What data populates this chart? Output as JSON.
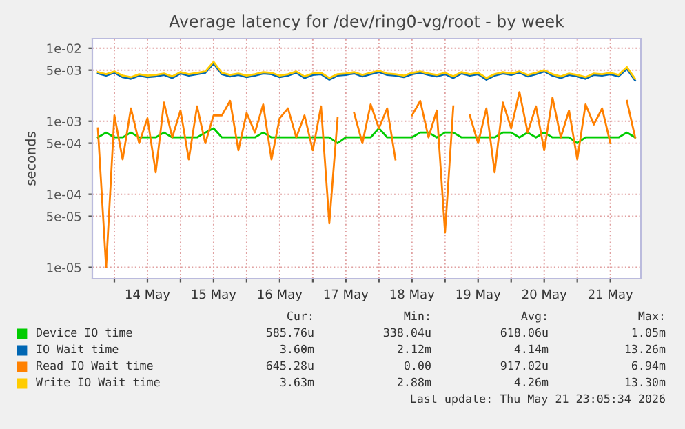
{
  "chart_data": {
    "type": "line",
    "title": "Average latency for /dev/ring0-vg/root - by week",
    "ylabel": "seconds",
    "log": "y",
    "grid": true,
    "legend": "bottom",
    "line_style": "solid",
    "marker": "none",
    "x": [
      "2026-05-13T18:00",
      "2026-05-13T21:00",
      "2026-05-14T00:00",
      "2026-05-14T03:00",
      "2026-05-14T06:00",
      "2026-05-14T09:00",
      "2026-05-14T12:00",
      "2026-05-14T15:00",
      "2026-05-14T18:00",
      "2026-05-14T21:00",
      "2026-05-15T00:00",
      "2026-05-15T03:00",
      "2026-05-15T06:00",
      "2026-05-15T09:00",
      "2026-05-15T12:00",
      "2026-05-15T15:00",
      "2026-05-15T18:00",
      "2026-05-15T21:00",
      "2026-05-16T00:00",
      "2026-05-16T03:00",
      "2026-05-16T06:00",
      "2026-05-16T09:00",
      "2026-05-16T12:00",
      "2026-05-16T15:00",
      "2026-05-16T18:00",
      "2026-05-16T21:00",
      "2026-05-17T00:00",
      "2026-05-17T03:00",
      "2026-05-17T06:00",
      "2026-05-17T09:00",
      "2026-05-17T12:00",
      "2026-05-17T15:00",
      "2026-05-17T18:00",
      "2026-05-17T21:00",
      "2026-05-18T00:00",
      "2026-05-18T03:00",
      "2026-05-18T06:00",
      "2026-05-18T09:00",
      "2026-05-18T12:00",
      "2026-05-18T15:00",
      "2026-05-18T18:00",
      "2026-05-18T21:00",
      "2026-05-19T00:00",
      "2026-05-19T03:00",
      "2026-05-19T06:00",
      "2026-05-19T09:00",
      "2026-05-19T12:00",
      "2026-05-19T15:00",
      "2026-05-19T18:00",
      "2026-05-19T21:00",
      "2026-05-20T00:00",
      "2026-05-20T03:00",
      "2026-05-20T06:00",
      "2026-05-20T09:00",
      "2026-05-20T12:00",
      "2026-05-20T15:00",
      "2026-05-20T18:00",
      "2026-05-20T21:00",
      "2026-05-21T00:00",
      "2026-05-21T03:00",
      "2026-05-21T06:00",
      "2026-05-21T09:00",
      "2026-05-21T12:00",
      "2026-05-21T15:00",
      "2026-05-21T18:00",
      "2026-05-21T21:00"
    ],
    "series": [
      {
        "name": "Device IO time",
        "color": "#00cc00",
        "values": [
          0.0006,
          0.0007,
          0.0006,
          0.0006,
          0.0007,
          0.0006,
          0.0006,
          0.0006,
          0.0007,
          0.0006,
          0.0006,
          0.0006,
          0.0006,
          0.0007,
          0.0008,
          0.0006,
          0.0006,
          0.0006,
          0.0006,
          0.0006,
          0.0007,
          0.0006,
          0.0006,
          0.0006,
          0.0006,
          0.0006,
          0.0006,
          0.0006,
          0.0006,
          0.0005,
          0.0006,
          0.0006,
          0.0006,
          0.0006,
          0.0008,
          0.0006,
          0.0006,
          0.0006,
          0.0006,
          0.0007,
          0.0007,
          0.0006,
          0.0007,
          0.0007,
          0.0006,
          0.0006,
          0.0006,
          0.0006,
          0.0006,
          0.0007,
          0.0007,
          0.0006,
          0.0007,
          0.0006,
          0.0007,
          0.0006,
          0.0006,
          0.0006,
          0.0005,
          0.0006,
          0.0006,
          0.0006,
          0.0006,
          0.0006,
          0.0007,
          0.0006
        ]
      },
      {
        "name": "IO Wait time",
        "color": "#0066b3",
        "values": [
          0.0045,
          0.0042,
          0.0046,
          0.004,
          0.0038,
          0.0042,
          0.004,
          0.0041,
          0.0043,
          0.0039,
          0.0045,
          0.0042,
          0.0044,
          0.0046,
          0.0062,
          0.0044,
          0.0041,
          0.0043,
          0.004,
          0.0042,
          0.0045,
          0.0044,
          0.004,
          0.0042,
          0.0046,
          0.0039,
          0.0043,
          0.0044,
          0.0037,
          0.0042,
          0.0043,
          0.0045,
          0.0041,
          0.0044,
          0.0047,
          0.0043,
          0.0042,
          0.004,
          0.0044,
          0.0046,
          0.0043,
          0.0041,
          0.0044,
          0.0039,
          0.0045,
          0.0042,
          0.0044,
          0.0037,
          0.0042,
          0.0045,
          0.0043,
          0.0046,
          0.0041,
          0.0044,
          0.0048,
          0.0042,
          0.0039,
          0.0043,
          0.0041,
          0.0038,
          0.0043,
          0.0042,
          0.0044,
          0.0041,
          0.0052,
          0.0036
        ]
      },
      {
        "name": "Read IO Wait time",
        "color": "#ff8000",
        "values": [
          0.0008,
          1e-05,
          0.0012,
          0.0003,
          0.0015,
          0.0005,
          0.0011,
          0.0002,
          0.0018,
          0.0006,
          0.0014,
          0.0003,
          0.0016,
          0.0005,
          0.0012,
          0.0012,
          0.0019,
          0.0004,
          0.0013,
          0.0007,
          0.0017,
          0.0003,
          0.0011,
          0.0015,
          0.0006,
          0.0012,
          0.0004,
          0.0016,
          4e-05,
          0.0011,
          null,
          0.0013,
          0.0005,
          0.0017,
          0.0008,
          0.0015,
          0.0003,
          null,
          0.0012,
          0.0019,
          0.0006,
          0.0014,
          3e-05,
          0.0016,
          null,
          0.0012,
          0.0005,
          0.0015,
          0.0002,
          0.0018,
          0.0008,
          0.0025,
          0.0007,
          0.0016,
          0.0004,
          0.0021,
          0.0006,
          0.0014,
          0.0003,
          0.0017,
          0.0009,
          0.0015,
          0.0005,
          null,
          0.0019,
          0.0006
        ]
      },
      {
        "name": "Write IO Wait time",
        "color": "#ffcc00",
        "values": [
          0.0047,
          0.0044,
          0.0048,
          0.0042,
          0.004,
          0.0044,
          0.0042,
          0.0043,
          0.0045,
          0.0041,
          0.0047,
          0.0044,
          0.0046,
          0.0048,
          0.0065,
          0.0046,
          0.0043,
          0.0045,
          0.0042,
          0.0044,
          0.0047,
          0.0046,
          0.0042,
          0.0044,
          0.0048,
          0.0041,
          0.0045,
          0.0046,
          0.0039,
          0.0044,
          0.0045,
          0.0047,
          0.0043,
          0.0046,
          0.0049,
          0.0045,
          0.0044,
          0.0042,
          0.0046,
          0.0048,
          0.0045,
          0.0043,
          0.0046,
          0.0041,
          0.0047,
          0.0044,
          0.0046,
          0.0039,
          0.0044,
          0.0047,
          0.0045,
          0.0048,
          0.0043,
          0.0046,
          0.005,
          0.0044,
          0.0041,
          0.0045,
          0.0043,
          0.004,
          0.0045,
          0.0044,
          0.0046,
          0.0043,
          0.0055,
          0.0038
        ]
      }
    ],
    "xlim": [
      "2026-05-13T16:00",
      "2026-05-21T23:05"
    ],
    "xticks": [
      {
        "value": "2026-05-14T00:00",
        "label": null
      },
      {
        "value": "2026-05-14T12:00",
        "label": "14 May"
      },
      {
        "value": "2026-05-15T00:00",
        "label": null
      },
      {
        "value": "2026-05-15T12:00",
        "label": "15 May"
      },
      {
        "value": "2026-05-16T00:00",
        "label": null
      },
      {
        "value": "2026-05-16T12:00",
        "label": "16 May"
      },
      {
        "value": "2026-05-17T00:00",
        "label": null
      },
      {
        "value": "2026-05-17T12:00",
        "label": "17 May"
      },
      {
        "value": "2026-05-18T00:00",
        "label": null
      },
      {
        "value": "2026-05-18T12:00",
        "label": "18 May"
      },
      {
        "value": "2026-05-19T00:00",
        "label": null
      },
      {
        "value": "2026-05-19T12:00",
        "label": "19 May"
      },
      {
        "value": "2026-05-20T00:00",
        "label": null
      },
      {
        "value": "2026-05-20T12:00",
        "label": "20 May"
      },
      {
        "value": "2026-05-21T00:00",
        "label": null
      },
      {
        "value": "2026-05-21T12:00",
        "label": "21 May"
      }
    ],
    "ylim": [
      7e-06,
      0.0135
    ],
    "yticks": [
      {
        "value": 1e-05,
        "label": "1e-05"
      },
      {
        "value": 5e-05,
        "label": "5e-05"
      },
      {
        "value": 0.0001,
        "label": "1e-04"
      },
      {
        "value": 0.0005,
        "label": "5e-04"
      },
      {
        "value": 0.001,
        "label": "1e-03"
      },
      {
        "value": 0.005,
        "label": "5e-03"
      },
      {
        "value": 0.01,
        "label": "1e-02"
      }
    ],
    "annotations": [
      "Cur:",
      "Min:",
      "Avg:",
      "Max:",
      "585.76u",
      "338.04u",
      "618.06u",
      "1.05m",
      "3.60m",
      "2.12m",
      "4.14m",
      "13.26m",
      "645.28u",
      "0.00",
      "917.02u",
      "6.94m",
      "3.63m",
      "2.88m",
      "4.26m",
      "13.30m",
      "Last update: Thu May 21 23:05:34 2026"
    ]
  }
}
